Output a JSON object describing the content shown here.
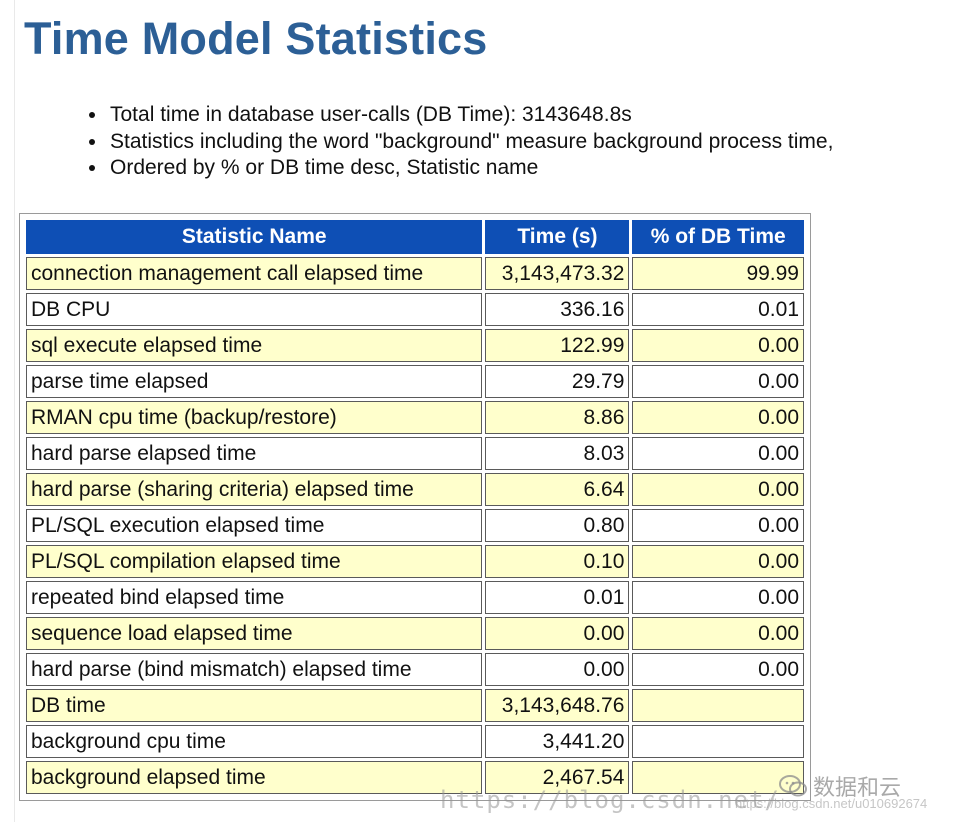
{
  "title": "Time Model Statistics",
  "notes": [
    "Total time in database user-calls (DB Time): 3143648.8s",
    "Statistics including the word \"background\" measure background process time,",
    "Ordered by % or DB time desc, Statistic name"
  ],
  "table": {
    "headers": {
      "name": "Statistic Name",
      "time": "Time (s)",
      "pct": "% of DB Time"
    },
    "rows": [
      {
        "name": "connection management call elapsed time",
        "time": "3,143,473.32",
        "pct": "99.99"
      },
      {
        "name": "DB CPU",
        "time": "336.16",
        "pct": "0.01"
      },
      {
        "name": "sql execute elapsed time",
        "time": "122.99",
        "pct": "0.00"
      },
      {
        "name": "parse time elapsed",
        "time": "29.79",
        "pct": "0.00"
      },
      {
        "name": "RMAN cpu time (backup/restore)",
        "time": "8.86",
        "pct": "0.00"
      },
      {
        "name": "hard parse elapsed time",
        "time": "8.03",
        "pct": "0.00"
      },
      {
        "name": "hard parse (sharing criteria) elapsed time",
        "time": "6.64",
        "pct": "0.00"
      },
      {
        "name": "PL/SQL execution elapsed time",
        "time": "0.80",
        "pct": "0.00"
      },
      {
        "name": "PL/SQL compilation elapsed time",
        "time": "0.10",
        "pct": "0.00"
      },
      {
        "name": "repeated bind elapsed time",
        "time": "0.01",
        "pct": "0.00"
      },
      {
        "name": "sequence load elapsed time",
        "time": "0.00",
        "pct": "0.00"
      },
      {
        "name": "hard parse (bind mismatch) elapsed time",
        "time": "0.00",
        "pct": "0.00"
      },
      {
        "name": "DB time",
        "time": "3,143,648.76",
        "pct": ""
      },
      {
        "name": "background cpu time",
        "time": "3,441.20",
        "pct": ""
      },
      {
        "name": "background elapsed time",
        "time": "2,467.54",
        "pct": ""
      }
    ]
  },
  "watermark": {
    "url": "https://blog.csdn.net/",
    "path": "https://blog.csdn.net/u010692674",
    "brand": "数据和云",
    "logo_icon": "wechat-logo-icon"
  },
  "colors": {
    "title": "#2c5f96",
    "header_bg": "#0e4fb5",
    "shaded_row": "#ffffcc"
  }
}
